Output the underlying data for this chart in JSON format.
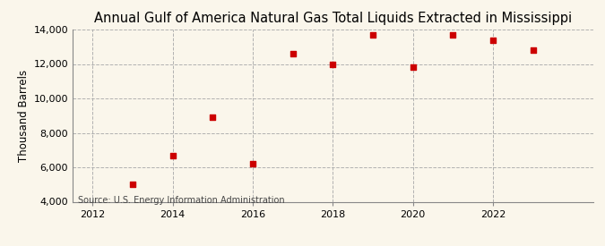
{
  "title": "Annual Gulf of America Natural Gas Total Liquids Extracted in Mississippi",
  "ylabel": "Thousand Barrels",
  "source_text": "Source: U.S. Energy Information Administration",
  "years": [
    2013,
    2014,
    2015,
    2016,
    2017,
    2018,
    2019,
    2020,
    2021,
    2022,
    2023
  ],
  "values": [
    5000,
    6700,
    8900,
    6200,
    12600,
    12000,
    13700,
    11800,
    13700,
    13400,
    12800
  ],
  "marker_color": "#cc0000",
  "marker": "s",
  "marker_size": 4,
  "ylim": [
    4000,
    14000
  ],
  "xlim": [
    2011.5,
    2024.5
  ],
  "xticks": [
    2012,
    2014,
    2016,
    2018,
    2020,
    2022
  ],
  "yticks": [
    4000,
    6000,
    8000,
    10000,
    12000,
    14000
  ],
  "background_color": "#faf6eb",
  "grid_color": "#aaaaaa",
  "title_fontsize": 10.5,
  "label_fontsize": 8.5,
  "tick_fontsize": 8,
  "source_fontsize": 7
}
